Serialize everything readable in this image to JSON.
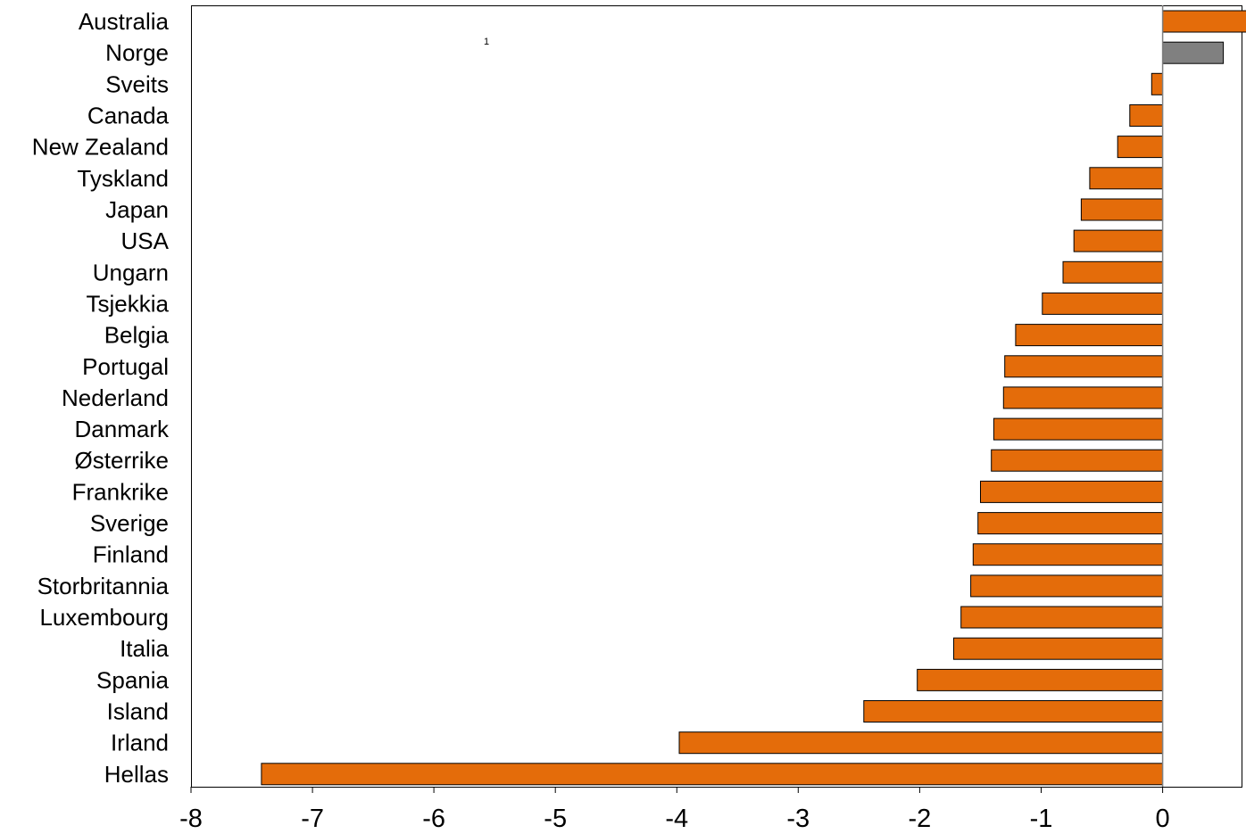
{
  "chart_data": {
    "type": "bar",
    "orientation": "horizontal",
    "categories": [
      "Australia",
      "Norge",
      "Sveits",
      "Canada",
      "New Zealand",
      "Tyskland",
      "Japan",
      "USA",
      "Ungarn",
      "Tsjekkia",
      "Belgia",
      "Portugal",
      "Nederland",
      "Danmark",
      "Østerrike",
      "Frankrike",
      "Sverige",
      "Finland",
      "Storbritannia",
      "Luxembourg",
      "Italia",
      "Spania",
      "Island",
      "Irland",
      "Hellas"
    ],
    "values": [
      0.82,
      0.5,
      -0.09,
      -0.27,
      -0.37,
      -0.6,
      -0.67,
      -0.73,
      -0.82,
      -0.99,
      -1.21,
      -1.3,
      -1.31,
      -1.39,
      -1.41,
      -1.5,
      -1.52,
      -1.56,
      -1.58,
      -1.66,
      -1.72,
      -2.02,
      -2.46,
      -3.98,
      -7.42
    ],
    "highlight_category": "Norge",
    "colors": {
      "default": "#e46c0a",
      "highlight": "#808080",
      "border": "#000000",
      "axis": "#808080"
    },
    "xlim": [
      -8,
      0.65
    ],
    "xticks": [
      -8,
      -7,
      -6,
      -5,
      -4,
      -3,
      -2,
      -1,
      0
    ],
    "xtick_labels": [
      "-8",
      "-7",
      "-6",
      "-5",
      "-4",
      "-3",
      "-2",
      "-1",
      "0"
    ],
    "xlabel": "",
    "ylabel": "",
    "title": "",
    "footnote_marker": "1",
    "grid": false
  }
}
